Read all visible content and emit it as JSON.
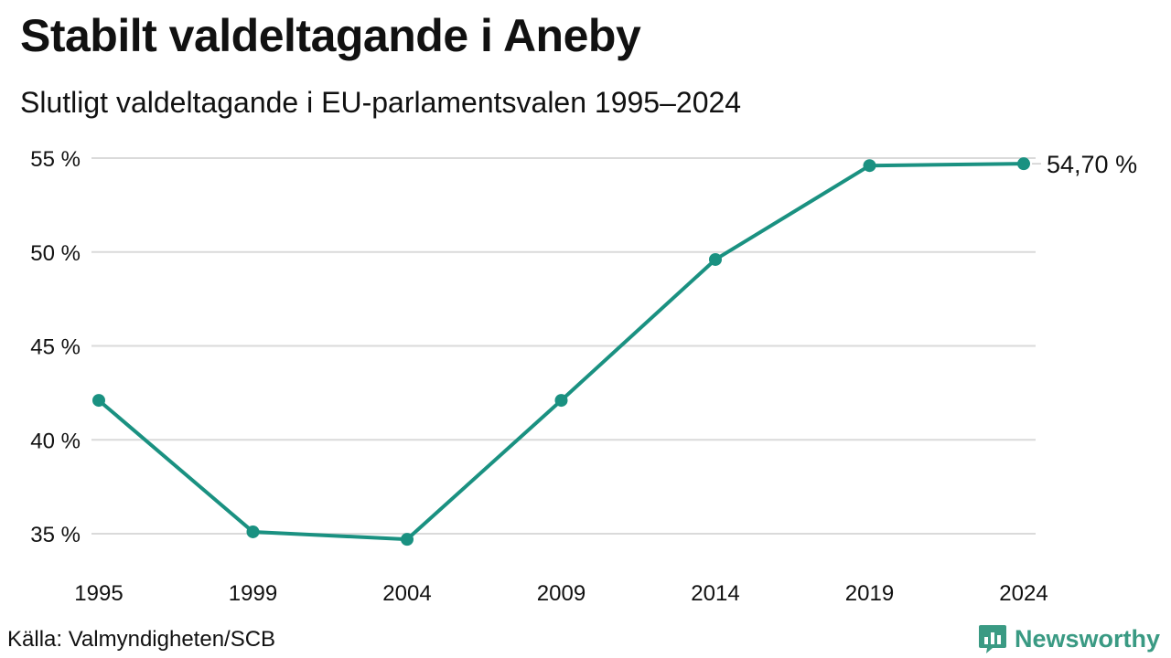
{
  "header": {
    "title": "Stabilt valdeltagande i Aneby",
    "subtitle": "Slutligt valdeltagande i EU-parlamentsvalen 1995–2024"
  },
  "footer": {
    "source": "Källa: Valmyndigheten/SCB",
    "brand_name": "Newsworthy",
    "brand_icon": "bar-chart-speech-bubble-icon"
  },
  "colors": {
    "line": "#1a9181",
    "grid": "#dadada",
    "text": "#111111",
    "brand": "#3a9a83"
  },
  "chart_data": {
    "type": "line",
    "x": [
      "1995",
      "1999",
      "2004",
      "2009",
      "2014",
      "2019",
      "2024"
    ],
    "series": [
      {
        "values": [
          42.1,
          35.1,
          34.7,
          42.1,
          49.6,
          54.6,
          54.7
        ]
      }
    ],
    "yticks": [
      35,
      40,
      45,
      50,
      55
    ],
    "ytick_labels": [
      "35 %",
      "40 %",
      "45 %",
      "50 %",
      "55 %"
    ],
    "ylim": [
      35,
      55
    ],
    "grid": true,
    "last_value_label": "54,70 %"
  }
}
